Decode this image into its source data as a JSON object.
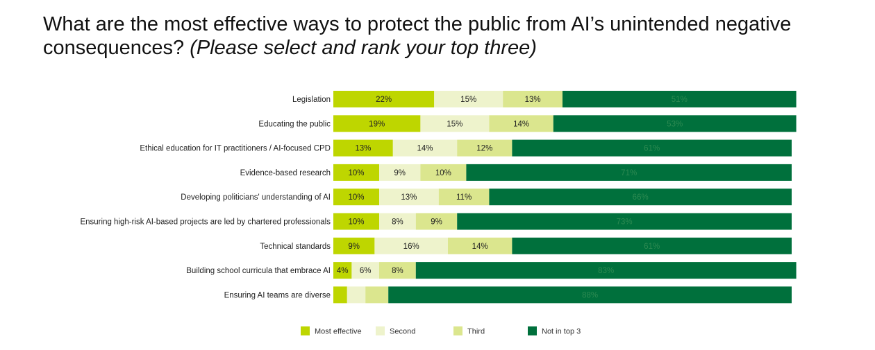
{
  "title": {
    "main": "What are the most effective ways to protect the public from AI’s unintended negative consequences?",
    "instruction": "(Please select and rank your top three)"
  },
  "chart_data": {
    "type": "bar",
    "orientation": "horizontal",
    "stacked": true,
    "title": "What are the most effective ways to protect the public from AI’s unintended negative consequences? (Please select and rank your top three)",
    "categories": [
      "Legislation",
      "Educating the public",
      "Ethical education for IT practitioners / AI-focused CPD",
      "Evidence-based research",
      "Developing politicians' understanding of AI",
      "Ensuring high-risk AI-based projects are led by chartered professionals",
      "Technical standards",
      "Building school curricula that embrace AI",
      "Ensuring AI teams are diverse"
    ],
    "series": [
      {
        "name": "Most effective",
        "color": "#bed600",
        "text_color": "#222222",
        "values": [
          22,
          19,
          13,
          10,
          10,
          10,
          9,
          4,
          3
        ],
        "labels": [
          "22%",
          "19%",
          "13%",
          "10%",
          "10%",
          "10%",
          "9%",
          "4%",
          ""
        ]
      },
      {
        "name": "Second",
        "color": "#eef3cc",
        "text_color": "#222222",
        "values": [
          15,
          15,
          14,
          9,
          13,
          8,
          16,
          6,
          4
        ],
        "labels": [
          "15%",
          "15%",
          "14%",
          "9%",
          "13%",
          "8%",
          "16%",
          "6%",
          ""
        ]
      },
      {
        "name": "Third",
        "color": "#dbe68e",
        "text_color": "#222222",
        "values": [
          13,
          14,
          12,
          10,
          11,
          9,
          14,
          8,
          5
        ],
        "labels": [
          "13%",
          "14%",
          "12%",
          "10%",
          "11%",
          "9%",
          "14%",
          "8%",
          ""
        ]
      },
      {
        "name": "Not in top 3",
        "color": "#00703c",
        "text_color": "#2d8a52",
        "values": [
          51,
          53,
          61,
          71,
          66,
          73,
          61,
          83,
          88
        ],
        "labels": [
          "51%",
          "53%",
          "61%",
          "71%",
          "66%",
          "73%",
          "61%",
          "83%",
          "88%"
        ]
      }
    ],
    "legend": {
      "position": "bottom"
    },
    "grid": false
  }
}
